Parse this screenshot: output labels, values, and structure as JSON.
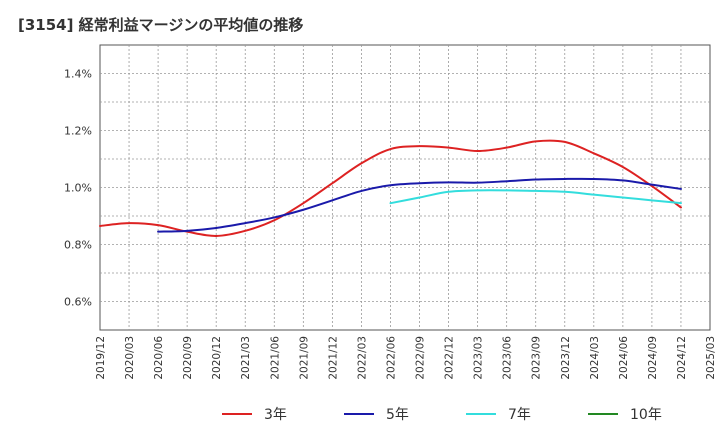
{
  "chart_data": {
    "type": "line",
    "title": "[3154]  経常利益マージンの平均値の推移",
    "xlabel": "",
    "ylabel": "",
    "x_ticks": [
      "2019/12",
      "2020/03",
      "2020/06",
      "2020/09",
      "2020/12",
      "2021/03",
      "2021/06",
      "2021/09",
      "2021/12",
      "2022/03",
      "2022/06",
      "2022/09",
      "2022/12",
      "2023/03",
      "2023/06",
      "2023/09",
      "2023/12",
      "2024/03",
      "2024/06",
      "2024/09",
      "2024/12",
      "2025/03"
    ],
    "y_ticks": [
      0.6,
      0.8,
      1.0,
      1.2,
      1.4
    ],
    "y_tick_labels": [
      "0.6%",
      "0.8%",
      "1.0%",
      "1.2%",
      "1.4%"
    ],
    "ylim": [
      0.5,
      1.5
    ],
    "grid": true,
    "legend_position": "bottom",
    "series": [
      {
        "name": "3年",
        "color": "#dd2222",
        "points": [
          [
            "2019/12",
            0.865
          ],
          [
            "2020/03",
            0.875
          ],
          [
            "2020/06",
            0.868
          ],
          [
            "2020/09",
            0.845
          ],
          [
            "2020/12",
            0.83
          ],
          [
            "2021/03",
            0.848
          ],
          [
            "2021/06",
            0.885
          ],
          [
            "2021/09",
            0.945
          ],
          [
            "2021/12",
            1.015
          ],
          [
            "2022/03",
            1.085
          ],
          [
            "2022/06",
            1.135
          ],
          [
            "2022/09",
            1.145
          ],
          [
            "2022/12",
            1.14
          ],
          [
            "2023/03",
            1.128
          ],
          [
            "2023/06",
            1.14
          ],
          [
            "2023/09",
            1.162
          ],
          [
            "2023/12",
            1.16
          ],
          [
            "2024/03",
            1.12
          ],
          [
            "2024/06",
            1.072
          ],
          [
            "2024/09",
            1.005
          ],
          [
            "2024/12",
            0.93
          ]
        ]
      },
      {
        "name": "5年",
        "color": "#1a1aaa",
        "points": [
          [
            "2020/06",
            0.845
          ],
          [
            "2020/09",
            0.848
          ],
          [
            "2020/12",
            0.858
          ],
          [
            "2021/03",
            0.875
          ],
          [
            "2021/06",
            0.895
          ],
          [
            "2021/09",
            0.922
          ],
          [
            "2021/12",
            0.955
          ],
          [
            "2022/03",
            0.988
          ],
          [
            "2022/06",
            1.008
          ],
          [
            "2022/09",
            1.015
          ],
          [
            "2022/12",
            1.018
          ],
          [
            "2023/03",
            1.017
          ],
          [
            "2023/06",
            1.022
          ],
          [
            "2023/09",
            1.028
          ],
          [
            "2023/12",
            1.03
          ],
          [
            "2024/03",
            1.03
          ],
          [
            "2024/06",
            1.025
          ],
          [
            "2024/09",
            1.01
          ],
          [
            "2024/12",
            0.995
          ]
        ]
      },
      {
        "name": "7年",
        "color": "#33dddd",
        "points": [
          [
            "2022/06",
            0.945
          ],
          [
            "2022/09",
            0.965
          ],
          [
            "2022/12",
            0.985
          ],
          [
            "2023/03",
            0.99
          ],
          [
            "2023/06",
            0.99
          ],
          [
            "2023/09",
            0.988
          ],
          [
            "2023/12",
            0.985
          ],
          [
            "2024/03",
            0.975
          ],
          [
            "2024/06",
            0.965
          ],
          [
            "2024/09",
            0.955
          ],
          [
            "2024/12",
            0.945
          ]
        ]
      },
      {
        "name": "10年",
        "color": "#228822",
        "points": []
      }
    ]
  }
}
